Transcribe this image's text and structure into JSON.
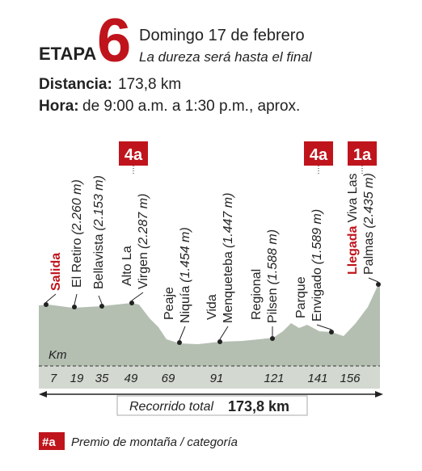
{
  "header": {
    "etapa": "ETAPA",
    "number": "6",
    "date": "Domingo 17 de febrero",
    "subtitle": "La dureza será hasta el final"
  },
  "info": {
    "distance_label": "Distancia:",
    "distance": "173,8 km",
    "time_label": "Hora:",
    "time": "de 9:00 a.m. a 1:30 p.m., aprox."
  },
  "points": [
    {
      "tag": "Salida"
    },
    {
      "line1": "El Retiro",
      "altitude": "(2.260 m)"
    },
    {
      "line1": "Bellavista",
      "altitude": "(2.153 m)"
    },
    {
      "line1": "Alto La",
      "line2": "Virgen",
      "altitude": "(2.287 m)",
      "category": "4a"
    },
    {
      "line1": "Peaje",
      "line2": "Niquía",
      "altitude": "(1.454 m)"
    },
    {
      "line1": "Vida",
      "line2": "Menqueteba",
      "altitude": "(1.447 m)"
    },
    {
      "line1": "Regional",
      "line2": "Pilsen",
      "altitude": "(1.588 m)"
    },
    {
      "line1": "Parque",
      "line2": "Envigado",
      "altitude": "(1.589 m)",
      "category": "4a"
    },
    {
      "tag": "Llegada",
      "line1": "Viva Las",
      "line2": "Palmas",
      "altitude": "(2.435 m)",
      "category": "1a"
    }
  ],
  "axis_label": "Km",
  "km": [
    "7",
    "19",
    "35",
    "49",
    "69",
    "91",
    "121",
    "141",
    "156"
  ],
  "total": {
    "label": "Recorrido total",
    "value": "173,8 km"
  },
  "legend": {
    "symbol": "#a",
    "text": "Premio de montaña / categoría"
  }
}
